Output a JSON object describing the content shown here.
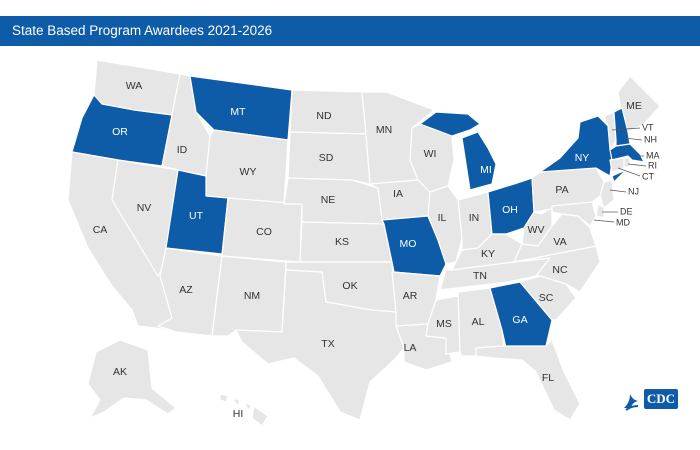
{
  "title": "State Based Program Awardees 2021-2026",
  "colors": {
    "awardee": "#0e5ba8",
    "other": "#e6e6e6",
    "header": "#0e5ba8"
  },
  "states": {
    "WA": {
      "label": "WA",
      "awardee": false
    },
    "OR": {
      "label": "OR",
      "awardee": true
    },
    "CA": {
      "label": "CA",
      "awardee": false
    },
    "ID": {
      "label": "ID",
      "awardee": false
    },
    "NV": {
      "label": "NV",
      "awardee": false
    },
    "MT": {
      "label": "MT",
      "awardee": true
    },
    "WY": {
      "label": "WY",
      "awardee": false
    },
    "UT": {
      "label": "UT",
      "awardee": true
    },
    "AZ": {
      "label": "AZ",
      "awardee": false
    },
    "CO": {
      "label": "CO",
      "awardee": false
    },
    "NM": {
      "label": "NM",
      "awardee": false
    },
    "ND": {
      "label": "ND",
      "awardee": false
    },
    "SD": {
      "label": "SD",
      "awardee": false
    },
    "NE": {
      "label": "NE",
      "awardee": false
    },
    "KS": {
      "label": "KS",
      "awardee": false
    },
    "OK": {
      "label": "OK",
      "awardee": false
    },
    "TX": {
      "label": "TX",
      "awardee": false
    },
    "MN": {
      "label": "MN",
      "awardee": false
    },
    "IA": {
      "label": "IA",
      "awardee": false
    },
    "MO": {
      "label": "MO",
      "awardee": true
    },
    "AR": {
      "label": "AR",
      "awardee": false
    },
    "LA": {
      "label": "LA",
      "awardee": false
    },
    "WI": {
      "label": "WI",
      "awardee": false
    },
    "IL": {
      "label": "IL",
      "awardee": false
    },
    "MS": {
      "label": "MS",
      "awardee": false
    },
    "MI": {
      "label": "MI",
      "awardee": true
    },
    "IN": {
      "label": "IN",
      "awardee": false
    },
    "KY": {
      "label": "KY",
      "awardee": false
    },
    "TN": {
      "label": "TN",
      "awardee": false
    },
    "AL": {
      "label": "AL",
      "awardee": false
    },
    "OH": {
      "label": "OH",
      "awardee": true
    },
    "WV": {
      "label": "WV",
      "awardee": false
    },
    "GA": {
      "label": "GA",
      "awardee": true
    },
    "FL": {
      "label": "FL",
      "awardee": false
    },
    "SC": {
      "label": "SC",
      "awardee": false
    },
    "NC": {
      "label": "NC",
      "awardee": false
    },
    "VA": {
      "label": "VA",
      "awardee": false
    },
    "PA": {
      "label": "PA",
      "awardee": false
    },
    "NY": {
      "label": "NY",
      "awardee": true
    },
    "ME": {
      "label": "ME",
      "awardee": false
    },
    "VT": {
      "label": "VT",
      "awardee": false
    },
    "NH": {
      "label": "NH",
      "awardee": true
    },
    "MA": {
      "label": "MA",
      "awardee": true
    },
    "RI": {
      "label": "RI",
      "awardee": false
    },
    "CT": {
      "label": "CT",
      "awardee": false
    },
    "NJ": {
      "label": "NJ",
      "awardee": false
    },
    "DE": {
      "label": "DE",
      "awardee": false
    },
    "MD": {
      "label": "MD",
      "awardee": false
    },
    "AK": {
      "label": "AK",
      "awardee": false
    },
    "HI": {
      "label": "HI",
      "awardee": false
    }
  },
  "logo": {
    "text": "CDC",
    "icon": "hhs-eagle-icon"
  }
}
